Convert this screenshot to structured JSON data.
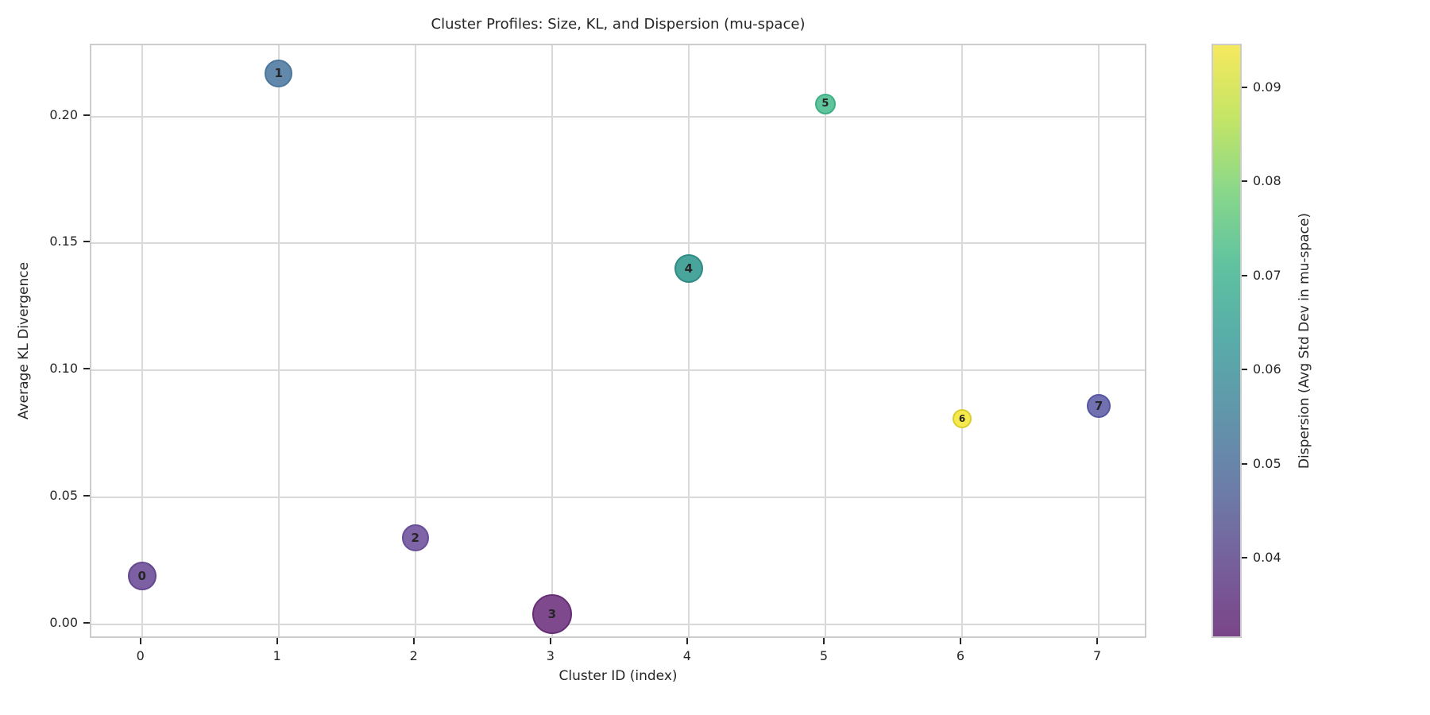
{
  "chart_data": {
    "type": "scatter",
    "title": "Cluster Profiles: Size, KL, and Dispersion (mu-space)",
    "xlabel": "Cluster ID (index)",
    "ylabel": "Average KL Divergence",
    "xlim": [
      -0.37,
      7.36
    ],
    "ylim": [
      -0.006,
      0.228
    ],
    "grid": true,
    "x_ticks": [
      0,
      1,
      2,
      3,
      4,
      5,
      6,
      7
    ],
    "x_tick_labels": [
      "0",
      "1",
      "2",
      "3",
      "4",
      "5",
      "6",
      "7"
    ],
    "y_ticks": [
      0.0,
      0.05,
      0.1,
      0.15,
      0.2
    ],
    "y_tick_labels": [
      "0.00",
      "0.05",
      "0.10",
      "0.15",
      "0.20"
    ],
    "points": [
      {
        "cluster": "0",
        "x": 0,
        "avg_kl": 0.019,
        "dispersion": 0.04,
        "radius_px": 18,
        "fill": "#7c60a3",
        "edge": "#63478f"
      },
      {
        "cluster": "1",
        "x": 1,
        "avg_kl": 0.217,
        "dispersion": 0.053,
        "radius_px": 17.5,
        "fill": "#6289ac",
        "edge": "#4a769c"
      },
      {
        "cluster": "2",
        "x": 2,
        "avg_kl": 0.034,
        "dispersion": 0.041,
        "radius_px": 17,
        "fill": "#8064a8",
        "edge": "#684f97"
      },
      {
        "cluster": "3",
        "x": 3,
        "avg_kl": 0.004,
        "dispersion": 0.032,
        "radius_px": 25,
        "fill": "#7e4a8d",
        "edge": "#662e74"
      },
      {
        "cluster": "4",
        "x": 4,
        "avg_kl": 0.14,
        "dispersion": 0.066,
        "radius_px": 18,
        "fill": "#49a59c",
        "edge": "#2e8b83"
      },
      {
        "cluster": "5",
        "x": 5,
        "avg_kl": 0.205,
        "dispersion": 0.073,
        "radius_px": 13,
        "fill": "#60c59c",
        "edge": "#3fae85"
      },
      {
        "cluster": "6",
        "x": 6,
        "avg_kl": 0.081,
        "dispersion": 0.095,
        "radius_px": 12,
        "fill": "#f6e94d",
        "edge": "#d9cd2e"
      },
      {
        "cluster": "7",
        "x": 7,
        "avg_kl": 0.086,
        "dispersion": 0.044,
        "radius_px": 15,
        "fill": "#7170b1",
        "edge": "#5756a1"
      }
    ],
    "colorbar": {
      "label": "Dispersion (Avg Std Dev in mu-space)",
      "vmin": 0.0315,
      "vmax": 0.0946,
      "tick_values": [
        0.04,
        0.05,
        0.06,
        0.07,
        0.08,
        0.09
      ],
      "tick_labels": [
        "0.04",
        "0.05",
        "0.06",
        "0.07",
        "0.08",
        "0.09"
      ],
      "gradient_stops": [
        {
          "pos": 0,
          "color": "#7a4589"
        },
        {
          "pos": 12.5,
          "color": "#76609c"
        },
        {
          "pos": 25,
          "color": "#6c7da9"
        },
        {
          "pos": 37.5,
          "color": "#6195aa"
        },
        {
          "pos": 50,
          "color": "#58aca9"
        },
        {
          "pos": 62.5,
          "color": "#5ec2a0"
        },
        {
          "pos": 75,
          "color": "#88d78b"
        },
        {
          "pos": 87.5,
          "color": "#c3e566"
        },
        {
          "pos": 100,
          "color": "#f6e95d"
        }
      ]
    },
    "style": {
      "text_color": "#262626",
      "grid_color": "#d9d9d9",
      "spine_color": "#cccccc",
      "tick_color": "#262626"
    }
  }
}
